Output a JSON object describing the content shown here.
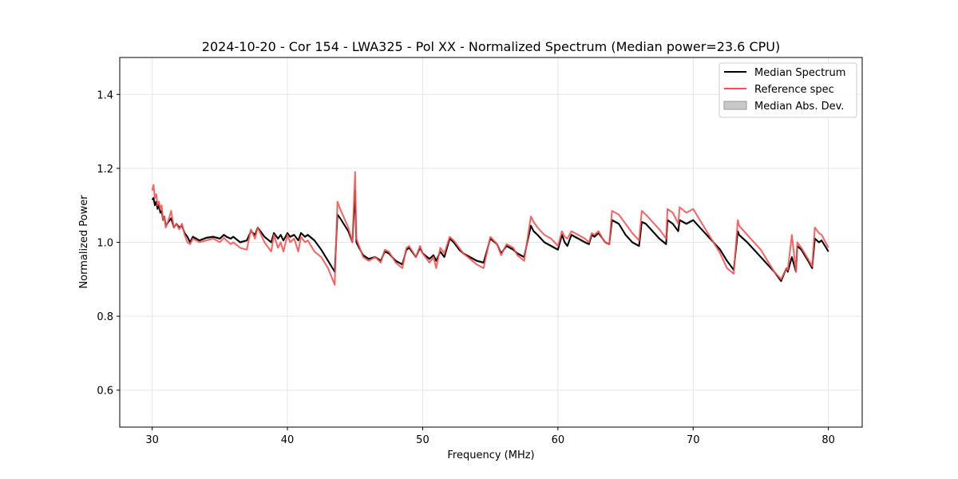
{
  "chart_data": {
    "type": "line",
    "title": "2024-10-20 - Cor 154 - LWA325 - Pol XX - Normalized Spectrum (Median power=23.6 CPU)",
    "xlabel": "Frequency (MHz)",
    "ylabel": "Normalized Power",
    "xlim": [
      27.6,
      82.5
    ],
    "ylim": [
      0.5,
      1.5
    ],
    "xticks": [
      30,
      40,
      50,
      60,
      70,
      80
    ],
    "yticks": [
      0.6,
      0.8,
      1.0,
      1.2,
      1.4
    ],
    "xtick_labels": [
      "30",
      "40",
      "50",
      "60",
      "70",
      "80"
    ],
    "ytick_labels": [
      "0.6",
      "0.8",
      "1.0",
      "1.2",
      "1.4"
    ],
    "grid": true,
    "legend_position": "top-right",
    "colors": {
      "median": "#000000",
      "reference": "#ff5050",
      "mad": "#c8c8c8"
    },
    "series": [
      {
        "name": "Median Spectrum",
        "x": [
          30.0,
          30.1,
          30.2,
          30.3,
          30.4,
          30.5,
          30.6,
          30.7,
          30.8,
          30.9,
          31.0,
          31.2,
          31.4,
          31.6,
          31.8,
          32.0,
          32.2,
          32.4,
          32.6,
          32.8,
          33.0,
          33.5,
          34.0,
          34.5,
          35.0,
          35.3,
          35.5,
          35.8,
          36.0,
          36.5,
          37.0,
          37.3,
          37.6,
          37.8,
          38.3,
          38.8,
          39.0,
          39.3,
          39.5,
          39.7,
          40.0,
          40.2,
          40.5,
          40.8,
          41.0,
          41.3,
          41.5,
          42.0,
          42.5,
          43.0,
          43.5,
          43.7,
          43.9,
          44.5,
          44.8,
          45.0,
          45.1,
          45.3,
          45.6,
          46.0,
          46.5,
          46.9,
          47.2,
          47.5,
          48.0,
          48.5,
          48.8,
          49.0,
          49.5,
          49.8,
          50.0,
          50.5,
          50.8,
          51.0,
          51.3,
          51.6,
          52.0,
          52.3,
          52.7,
          53.0,
          53.5,
          54.0,
          54.5,
          55.0,
          55.5,
          55.8,
          56.2,
          56.7,
          57.0,
          57.5,
          58.0,
          58.2,
          58.5,
          59.0,
          59.5,
          60.0,
          60.3,
          60.5,
          60.7,
          61.0,
          61.5,
          62.0,
          62.3,
          62.5,
          62.7,
          63.0,
          63.3,
          63.5,
          63.8,
          64.0,
          64.5,
          65.0,
          65.5,
          66.0,
          66.2,
          66.5,
          67.0,
          67.5,
          68.0,
          68.1,
          68.5,
          68.9,
          69.0,
          69.5,
          70.0,
          70.5,
          71.0,
          71.5,
          72.0,
          72.5,
          73.0,
          73.3,
          73.4,
          74.0,
          74.5,
          75.0,
          75.5,
          76.0,
          76.5,
          76.9,
          77.0,
          77.3,
          77.6,
          77.7,
          78.0,
          78.5,
          78.8,
          79.0,
          79.3,
          79.5,
          80.0
        ],
        "y": [
          1.115,
          1.12,
          1.1,
          1.11,
          1.09,
          1.1,
          1.08,
          1.085,
          1.06,
          1.07,
          1.045,
          1.055,
          1.065,
          1.04,
          1.05,
          1.04,
          1.045,
          1.025,
          1.015,
          1.0,
          1.015,
          1.005,
          1.012,
          1.015,
          1.01,
          1.02,
          1.015,
          1.01,
          1.015,
          1.0,
          1.005,
          1.03,
          1.02,
          1.04,
          1.015,
          1.0,
          1.025,
          1.01,
          1.02,
          1.005,
          1.025,
          1.015,
          1.02,
          1.005,
          1.025,
          1.015,
          1.02,
          1.005,
          0.98,
          0.95,
          0.92,
          1.075,
          1.065,
          1.03,
          1.0,
          1.14,
          1.0,
          0.985,
          0.965,
          0.955,
          0.96,
          0.95,
          0.975,
          0.97,
          0.95,
          0.94,
          0.98,
          0.985,
          0.96,
          0.985,
          0.97,
          0.955,
          0.965,
          0.95,
          0.975,
          0.96,
          1.01,
          1.0,
          0.98,
          0.97,
          0.96,
          0.95,
          0.945,
          1.01,
          0.995,
          0.97,
          0.99,
          0.98,
          0.97,
          0.96,
          1.045,
          1.03,
          1.02,
          1.0,
          0.99,
          0.98,
          1.02,
          1.0,
          0.99,
          1.02,
          1.01,
          1.0,
          0.995,
          1.02,
          1.015,
          1.025,
          1.01,
          1.0,
          0.995,
          1.06,
          1.05,
          1.02,
          1.0,
          0.99,
          1.055,
          1.05,
          1.03,
          1.01,
          0.995,
          1.06,
          1.05,
          1.03,
          1.06,
          1.05,
          1.06,
          1.04,
          1.02,
          1.0,
          0.98,
          0.95,
          0.925,
          1.03,
          1.02,
          1.0,
          0.98,
          0.96,
          0.94,
          0.92,
          0.895,
          0.93,
          0.92,
          0.96,
          0.92,
          0.99,
          0.98,
          0.95,
          0.93,
          1.01,
          1.0,
          1.005,
          0.975
        ]
      },
      {
        "name": "Reference spec",
        "x": [
          30.0,
          30.1,
          30.2,
          30.3,
          30.4,
          30.5,
          30.6,
          30.7,
          30.8,
          30.9,
          31.0,
          31.2,
          31.4,
          31.6,
          31.8,
          32.0,
          32.2,
          32.4,
          32.6,
          32.8,
          33.0,
          33.5,
          34.0,
          34.5,
          35.0,
          35.3,
          35.5,
          35.8,
          36.0,
          36.5,
          37.0,
          37.3,
          37.6,
          37.8,
          38.3,
          38.8,
          39.0,
          39.3,
          39.5,
          39.7,
          40.0,
          40.2,
          40.5,
          40.8,
          41.0,
          41.3,
          41.5,
          42.0,
          42.5,
          43.0,
          43.5,
          43.7,
          43.9,
          44.5,
          44.8,
          45.0,
          45.1,
          45.3,
          45.6,
          46.0,
          46.5,
          46.9,
          47.2,
          47.5,
          48.0,
          48.5,
          48.8,
          49.0,
          49.5,
          49.8,
          50.0,
          50.5,
          50.8,
          51.0,
          51.3,
          51.6,
          52.0,
          52.3,
          52.7,
          53.0,
          53.5,
          54.0,
          54.5,
          55.0,
          55.5,
          55.8,
          56.2,
          56.7,
          57.0,
          57.5,
          58.0,
          58.2,
          58.5,
          59.0,
          59.5,
          60.0,
          60.3,
          60.5,
          60.7,
          61.0,
          61.5,
          62.0,
          62.3,
          62.5,
          62.7,
          63.0,
          63.3,
          63.5,
          63.8,
          64.0,
          64.5,
          65.0,
          65.5,
          66.0,
          66.2,
          66.5,
          67.0,
          67.5,
          68.0,
          68.1,
          68.5,
          68.9,
          69.0,
          69.5,
          70.0,
          70.5,
          71.0,
          71.5,
          72.0,
          72.5,
          73.0,
          73.3,
          73.4,
          74.0,
          74.5,
          75.0,
          75.5,
          76.0,
          76.5,
          76.9,
          77.0,
          77.3,
          77.6,
          77.7,
          78.0,
          78.5,
          78.8,
          79.0,
          79.3,
          79.5,
          80.0
        ],
        "y": [
          1.14,
          1.155,
          1.12,
          1.13,
          1.1,
          1.11,
          1.09,
          1.1,
          1.06,
          1.07,
          1.04,
          1.06,
          1.085,
          1.04,
          1.05,
          1.035,
          1.05,
          1.02,
          1.0,
          0.995,
          1.01,
          1.0,
          1.005,
          1.01,
          1.0,
          1.012,
          1.005,
          0.995,
          1.0,
          0.985,
          0.98,
          1.035,
          1.01,
          1.04,
          1.0,
          0.975,
          1.02,
          0.985,
          1.0,
          0.975,
          1.02,
          1.0,
          1.01,
          0.975,
          1.015,
          1.0,
          1.005,
          0.975,
          0.96,
          0.93,
          0.885,
          1.11,
          1.09,
          1.04,
          1.0,
          1.19,
          1.01,
          0.99,
          0.96,
          0.95,
          0.96,
          0.945,
          0.98,
          0.975,
          0.945,
          0.93,
          0.985,
          0.99,
          0.96,
          0.99,
          0.97,
          0.945,
          0.96,
          0.93,
          0.985,
          0.97,
          1.015,
          1.005,
          0.985,
          0.97,
          0.955,
          0.94,
          0.93,
          1.015,
          0.995,
          0.965,
          0.995,
          0.985,
          0.965,
          0.95,
          1.07,
          1.055,
          1.04,
          1.02,
          1.01,
          0.99,
          1.03,
          1.015,
          1.01,
          1.03,
          1.02,
          1.01,
          1.0,
          1.025,
          1.02,
          1.03,
          1.01,
          1.0,
          0.995,
          1.085,
          1.075,
          1.05,
          1.025,
          1.005,
          1.085,
          1.075,
          1.055,
          1.035,
          1.01,
          1.09,
          1.08,
          1.05,
          1.095,
          1.08,
          1.09,
          1.06,
          1.03,
          1.0,
          0.97,
          0.93,
          0.915,
          1.06,
          1.045,
          1.02,
          1.0,
          0.98,
          0.95,
          0.92,
          0.9,
          0.93,
          0.925,
          1.02,
          0.92,
          1.0,
          0.985,
          0.955,
          0.935,
          1.04,
          1.025,
          1.02,
          0.985
        ]
      },
      {
        "name": "Median Abs. Dev.",
        "x": [],
        "y": []
      }
    ]
  }
}
